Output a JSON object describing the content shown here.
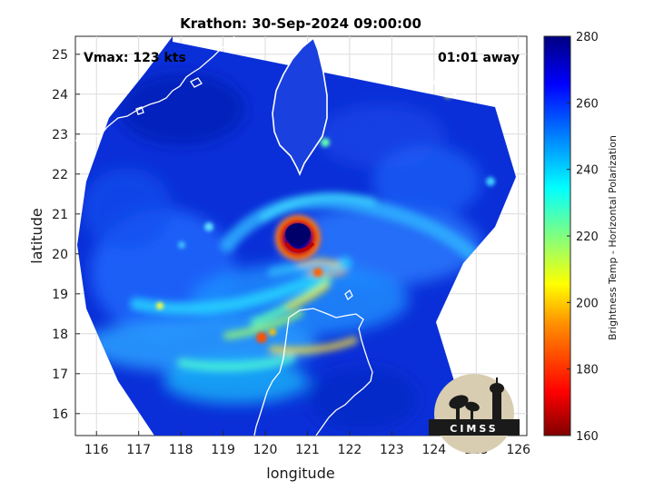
{
  "chart_data": {
    "type": "heatmap",
    "title": "Krathon: 30-Sep-2024 09:00:00",
    "annotations": {
      "vmax": "Vmax: 123 kts",
      "timing": "01:01 away"
    },
    "xlabel": "longitude",
    "ylabel": "latitude",
    "xlim": [
      115.5,
      126.2
    ],
    "ylim": [
      15.45,
      25.45
    ],
    "xticks": [
      116,
      117,
      118,
      119,
      120,
      121,
      122,
      123,
      124,
      125,
      126
    ],
    "yticks": [
      16,
      17,
      18,
      19,
      20,
      21,
      22,
      23,
      24,
      25
    ],
    "grid": true,
    "colorbar": {
      "label": "Brightness Temp - Horizontal Polarization",
      "range": [
        160,
        280
      ],
      "ticks": [
        160,
        180,
        200,
        220,
        240,
        260,
        280
      ],
      "colors": [
        "#800000",
        "#ff0000",
        "#ff8000",
        "#ffff00",
        "#80ff80",
        "#00ffff",
        "#0080ff",
        "#0000ff",
        "#000080"
      ]
    },
    "storm_center": {
      "lon": 120.85,
      "lat": 20.45
    },
    "logo": "CIMSS"
  }
}
